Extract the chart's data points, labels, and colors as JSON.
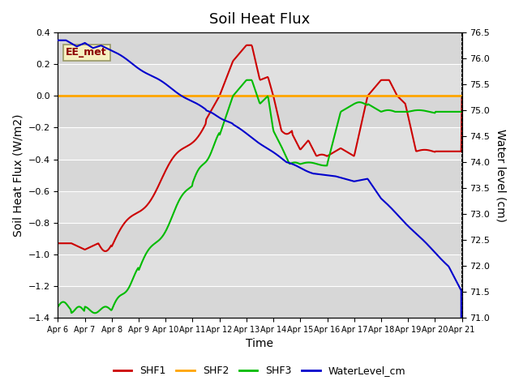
{
  "title": "Soil Heat Flux",
  "ylabel_left": "Soil Heat Flux (W/m2)",
  "ylabel_right": "Water level (cm)",
  "xlabel": "Time",
  "annotation_text": "EE_met",
  "x_tick_labels": [
    "Apr 6",
    "Apr 7",
    "Apr 8",
    "Apr 9",
    "Apr 10",
    "Apr 11",
    "Apr 12",
    "Apr 13",
    "Apr 14",
    "Apr 15",
    "Apr 16",
    "Apr 17",
    "Apr 18",
    "Apr 19",
    "Apr 20",
    "Apr 21"
  ],
  "ylim_left": [
    -1.4,
    0.4
  ],
  "ylim_right": [
    71.0,
    76.5
  ],
  "background_color": "#ffffff",
  "plot_bg_color": "#e0e0e0",
  "grid_color": "#ffffff",
  "shf1_color": "#cc0000",
  "shf2_color": "#ffa500",
  "shf3_color": "#00bb00",
  "wl_color": "#0000cc",
  "legend_labels": [
    "SHF1",
    "SHF2",
    "SHF3",
    "WaterLevel_cm"
  ],
  "title_fontsize": 13,
  "axis_label_fontsize": 10
}
